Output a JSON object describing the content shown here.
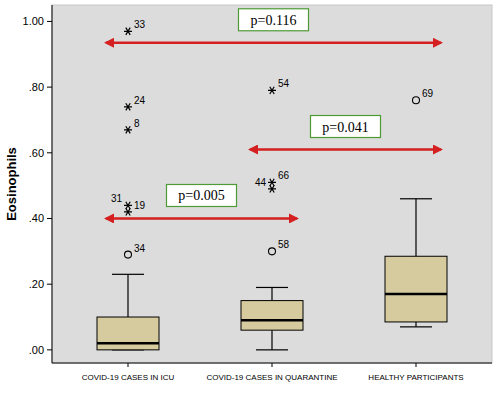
{
  "chart_data": {
    "type": "box",
    "y_label": "Eosinophils",
    "categories": [
      "COVID-19 CASES IN ICU",
      "COVID-19 CASES IN QUARANTINE",
      "HEALTHY PARTICIPANTS"
    ],
    "color": "#d6cb9e",
    "ylim": [
      -0.04,
      1.05
    ],
    "yticks": [
      {
        "value": 0,
        "label": ".00"
      },
      {
        "value": 0.2,
        "label": ".20"
      },
      {
        "value": 0.4,
        "label": ".40"
      },
      {
        "value": 0.6,
        "label": ".60"
      },
      {
        "value": 0.8,
        "label": ".80"
      },
      {
        "value": 1,
        "label": "1.00"
      }
    ],
    "boxes": [
      {
        "min": 0,
        "q1": 0,
        "median": 0.02,
        "q3": 0.1,
        "max": 0.23,
        "outliers": [
          {
            "value": 0.97,
            "label": "33",
            "marker": "star"
          },
          {
            "value": 0.74,
            "label": "24",
            "marker": "star"
          },
          {
            "value": 0.67,
            "label": "8",
            "marker": "star"
          },
          {
            "value": 0.42,
            "label": "19",
            "marker": "star"
          },
          {
            "value": 0.44,
            "label": "31",
            "marker": "star"
          },
          {
            "value": 0.29,
            "label": "34",
            "marker": "circle"
          }
        ]
      },
      {
        "min": 0,
        "q1": 0.06,
        "median": 0.09,
        "q3": 0.15,
        "max": 0.19,
        "outliers": [
          {
            "value": 0.79,
            "label": "54",
            "marker": "star"
          },
          {
            "value": 0.51,
            "label": "66",
            "marker": "star"
          },
          {
            "value": 0.49,
            "label": "44",
            "marker": "star"
          },
          {
            "value": 0.3,
            "label": "58",
            "marker": "circle"
          }
        ]
      },
      {
        "min": 0.07,
        "q1": 0.085,
        "median": 0.17,
        "q3": 0.285,
        "max": 0.46,
        "outliers": [
          {
            "value": 0.76,
            "label": "69",
            "marker": "circle"
          }
        ]
      }
    ],
    "annotations": [
      {
        "text": "p=0.116",
        "from": 0,
        "to": 2,
        "y": 0.935
      },
      {
        "text": "p=0.041",
        "from": 1,
        "to": 2,
        "y": 0.61
      },
      {
        "text": "p=0.005",
        "from": 0,
        "to": 1,
        "y": 0.4
      }
    ]
  }
}
